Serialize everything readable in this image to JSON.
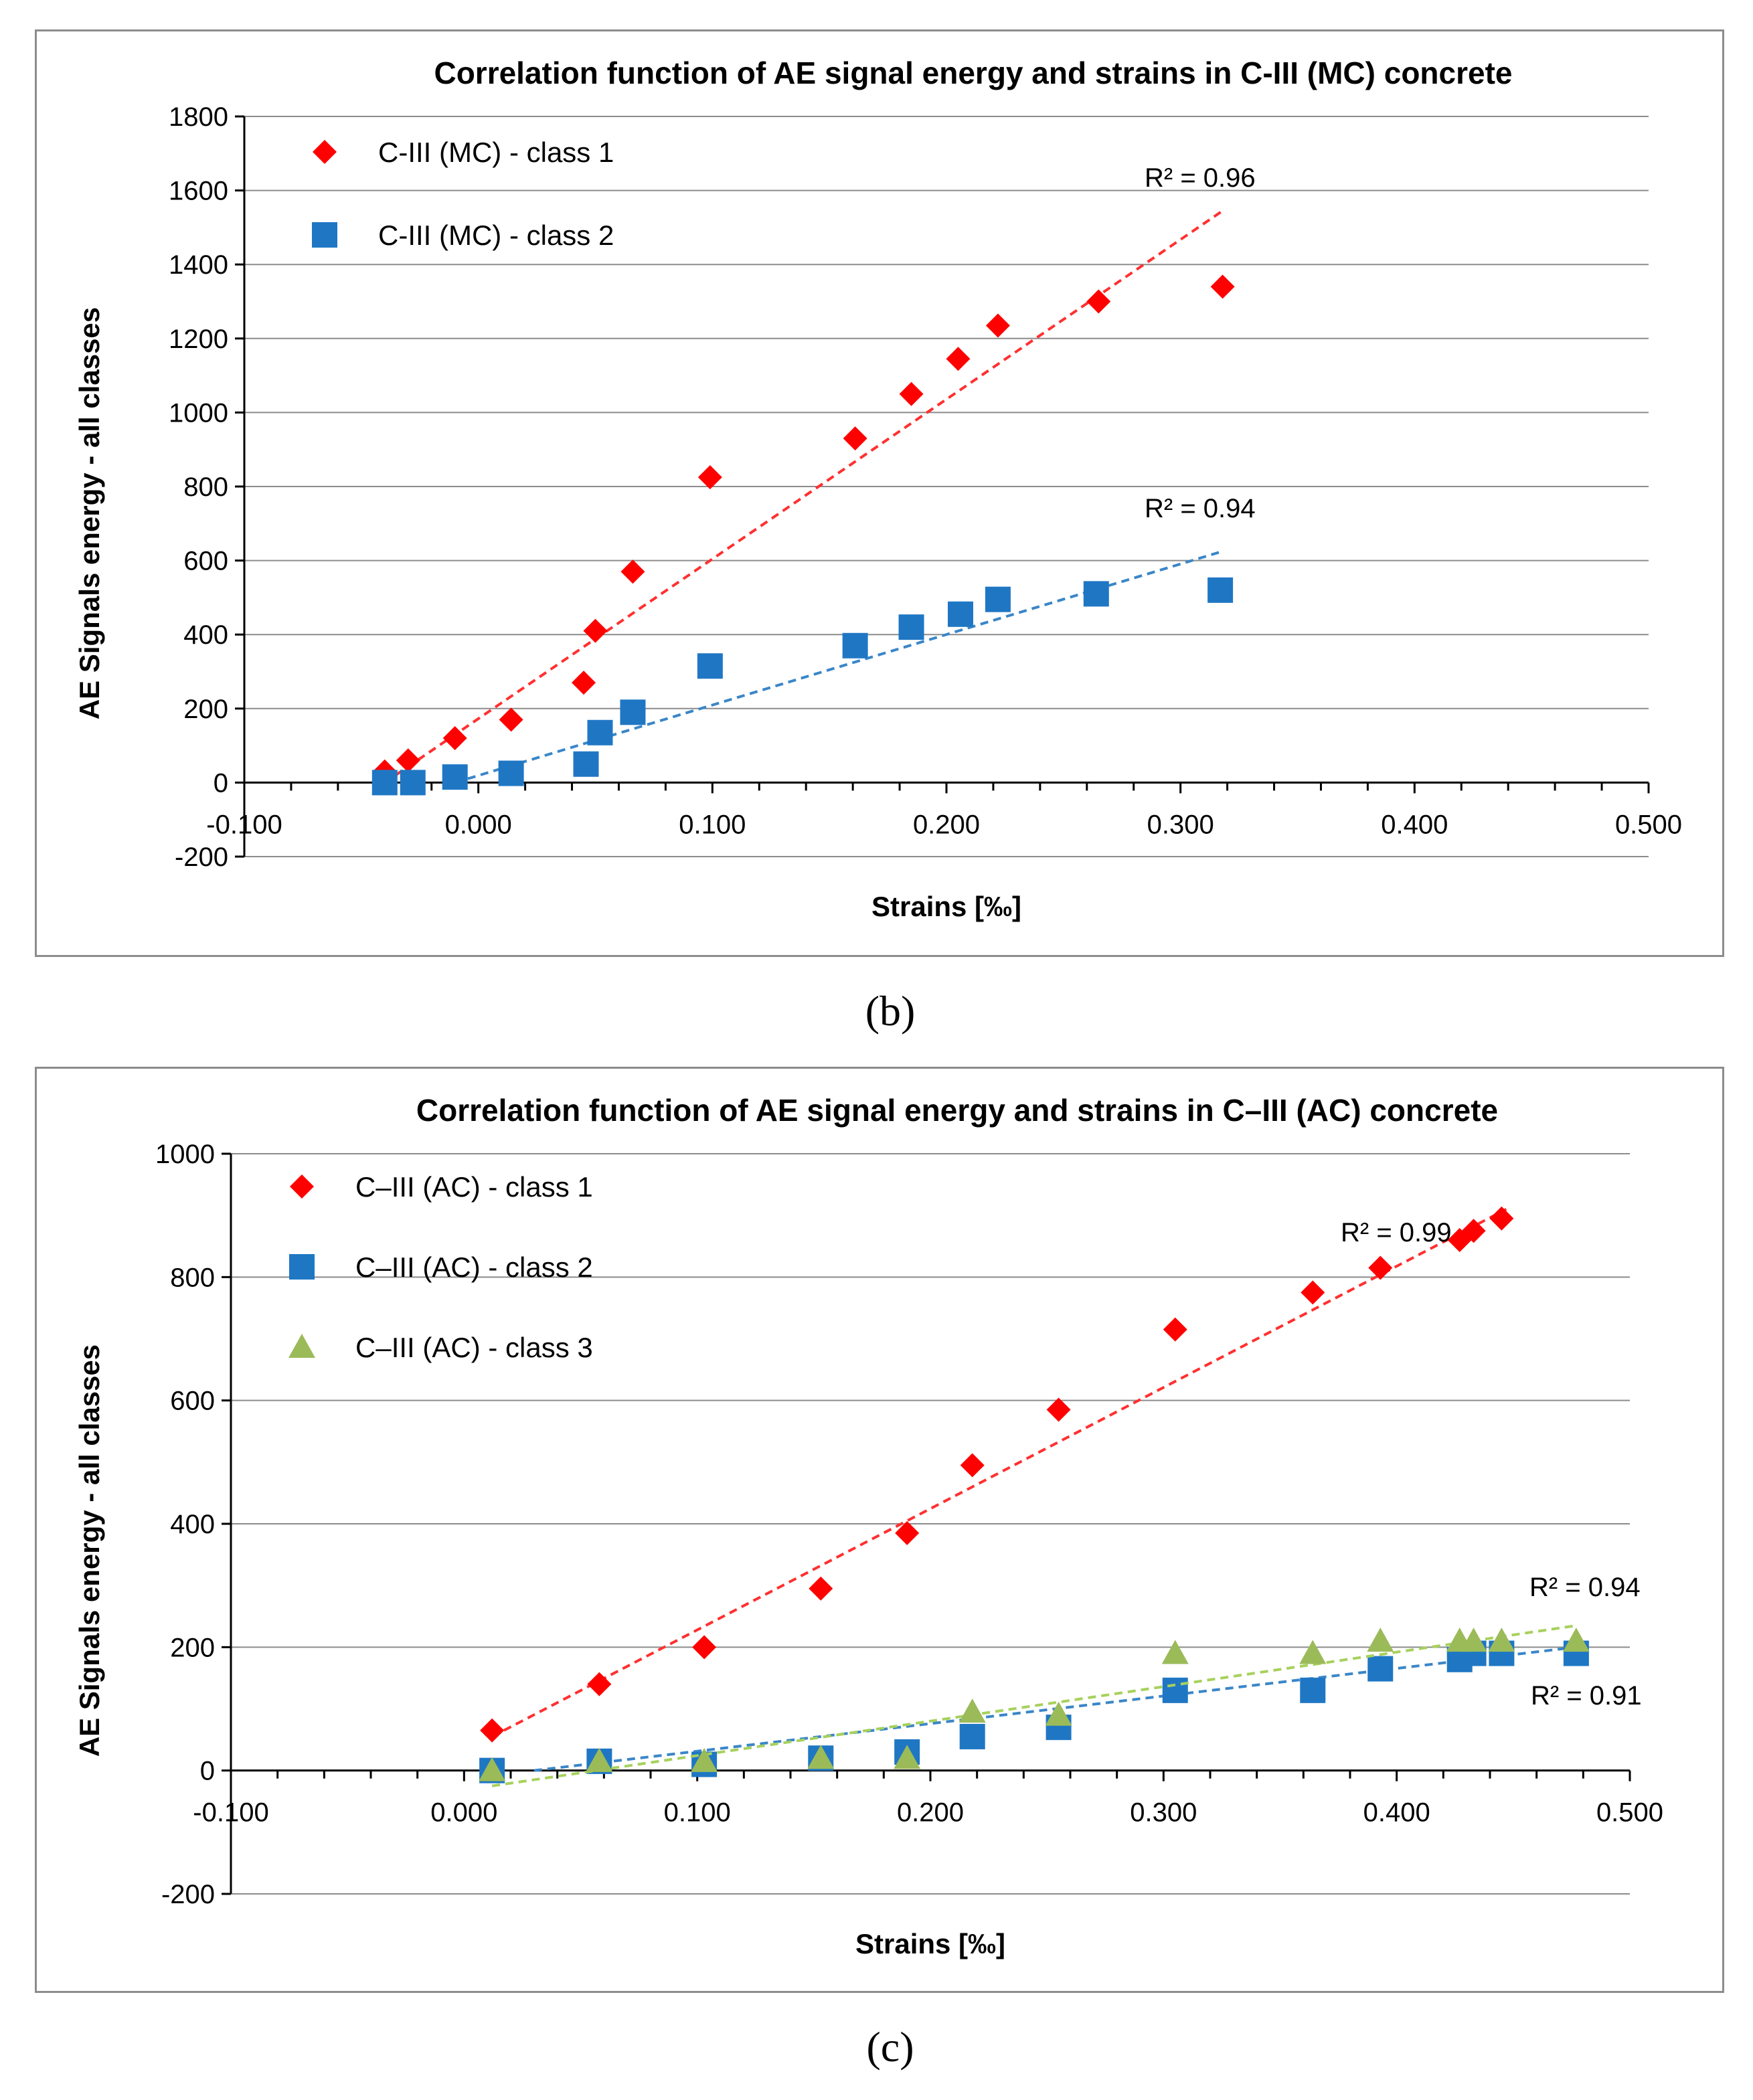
{
  "colors": {
    "class1": "#ff0000",
    "class2": "#1f77c4",
    "class3": "#9bbb59",
    "trend1": "#ff3030",
    "trend2": "#3a86c8",
    "trend3": "#a6d15c",
    "grid": "#8c8c8c",
    "axis": "#000000"
  },
  "labels": {
    "b": "(b)",
    "c": "(c)"
  },
  "chart_data": [
    {
      "type": "scatter",
      "title": "Correlation function of AE signal energy and strains in C-III (MC) concrete",
      "xlabel": "Strains [‰]",
      "ylabel": "AE  Signals energy - all classes",
      "xlim": [
        -0.1,
        0.5
      ],
      "ylim": [
        -200,
        1800
      ],
      "xticks": [
        "-0.100",
        "0.000",
        "0.100",
        "0.200",
        "0.300",
        "0.400",
        "0.500"
      ],
      "yticks": [
        "-200",
        "0",
        "200",
        "400",
        "600",
        "800",
        "1000",
        "1200",
        "1400",
        "1600",
        "1800"
      ],
      "grid": "horizontal",
      "legend_position": "top-left",
      "series": [
        {
          "name": "C-III (MC) - class 1",
          "marker": "diamond",
          "x": [
            -0.04,
            -0.03,
            -0.01,
            0.014,
            0.045,
            0.05,
            0.066,
            0.099,
            0.161,
            0.185,
            0.205,
            0.222,
            0.265,
            0.318
          ],
          "y": [
            30,
            60,
            120,
            170,
            270,
            410,
            570,
            825,
            930,
            1050,
            1145,
            1235,
            1300,
            1340
          ],
          "trendline": {
            "x": [
              -0.04,
              0.318
            ],
            "y": [
              0,
              1545
            ]
          },
          "r2": "R² = 0.96"
        },
        {
          "name": "C-III (MC) - class 2",
          "marker": "square",
          "x": [
            -0.04,
            -0.028,
            -0.01,
            0.014,
            0.046,
            0.052,
            0.066,
            0.099,
            0.161,
            0.185,
            0.206,
            0.222,
            0.264,
            0.317
          ],
          "y": [
            0,
            0,
            15,
            25,
            50,
            135,
            190,
            315,
            370,
            420,
            455,
            495,
            510,
            520
          ],
          "trendline": {
            "x": [
              -0.01,
              0.318
            ],
            "y": [
              0,
              625
            ]
          },
          "r2": "R² = 0.94"
        }
      ]
    },
    {
      "type": "scatter",
      "title": "Correlation function of AE signal energy and strains in C–III (AC) concrete",
      "xlabel": "Strains [‰]",
      "ylabel": "AE  Signals energy - all classes",
      "xlim": [
        -0.1,
        0.5
      ],
      "ylim": [
        -200,
        1000
      ],
      "xticks": [
        "-0.100",
        "0.000",
        "0.100",
        "0.200",
        "0.300",
        "0.400",
        "0.500"
      ],
      "yticks": [
        "-200",
        "0",
        "200",
        "400",
        "600",
        "800",
        "1000"
      ],
      "grid": "horizontal",
      "legend_position": "top-left",
      "series": [
        {
          "name": "C–III (AC) - class 1",
          "marker": "diamond",
          "x": [
            0.012,
            0.058,
            0.103,
            0.153,
            0.19,
            0.218,
            0.255,
            0.305,
            0.364,
            0.393,
            0.427,
            0.433,
            0.445
          ],
          "y": [
            65,
            140,
            200,
            295,
            385,
            495,
            585,
            715,
            775,
            815,
            860,
            875,
            895
          ],
          "trendline": {
            "x": [
              0.012,
              0.447
            ],
            "y": [
              55,
              910
            ]
          },
          "r2": "R² = 0.99"
        },
        {
          "name": "C–III (AC) - class 2",
          "marker": "square",
          "x": [
            0.012,
            0.058,
            0.103,
            0.153,
            0.19,
            0.218,
            0.255,
            0.305,
            0.364,
            0.393,
            0.427,
            0.433,
            0.445,
            0.477
          ],
          "y": [
            0,
            15,
            10,
            20,
            30,
            55,
            70,
            130,
            130,
            165,
            180,
            190,
            190,
            190
          ],
          "trendline": {
            "x": [
              0.03,
              0.477
            ],
            "y": [
              0,
              200
            ]
          },
          "r2": "R² = 0.94"
        },
        {
          "name": "C–III (AC) - class 3",
          "marker": "triangle",
          "x": [
            0.012,
            0.058,
            0.103,
            0.153,
            0.19,
            0.218,
            0.255,
            0.305,
            0.364,
            0.393,
            0.427,
            0.433,
            0.445,
            0.477
          ],
          "y": [
            0,
            15,
            15,
            20,
            20,
            95,
            90,
            190,
            190,
            210,
            210,
            210,
            210,
            210
          ],
          "trendline": {
            "x": [
              0.012,
              0.477
            ],
            "y": [
              -25,
              235
            ]
          },
          "r2": "R² = 0.91"
        }
      ]
    }
  ]
}
